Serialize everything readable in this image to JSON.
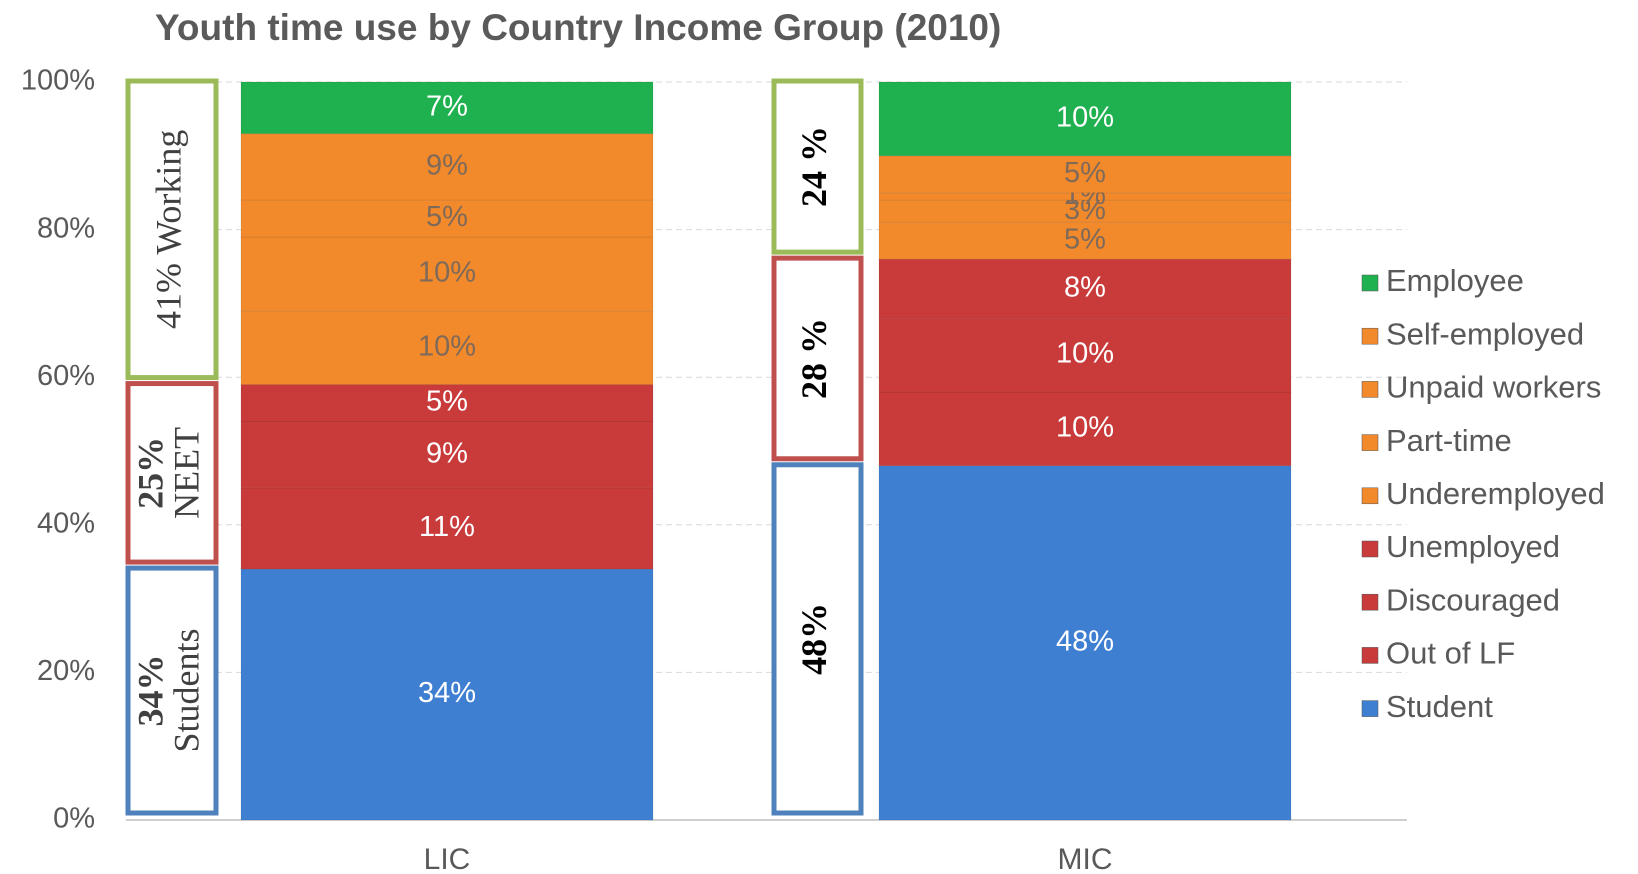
{
  "chart_data": {
    "type": "stacked_bar",
    "title": "Youth time use by Country Income Group (2010)",
    "categories": [
      "LIC",
      "MIC"
    ],
    "series": [
      {
        "name": "Student",
        "color": "#3f7fd2",
        "values": [
          34,
          48
        ],
        "value_labels": [
          "34%",
          "48%"
        ]
      },
      {
        "name": "Out of LF",
        "color": "#c93b3b",
        "values": [
          11,
          10
        ],
        "value_labels": [
          "11%",
          "10%"
        ]
      },
      {
        "name": "Discouraged",
        "color": "#c93b3b",
        "values": [
          9,
          10
        ],
        "value_labels": [
          "9%",
          "10%"
        ]
      },
      {
        "name": "Unemployed",
        "color": "#c93b3b",
        "values": [
          5,
          8
        ],
        "value_labels": [
          "5%",
          "8%"
        ]
      },
      {
        "name": "Underemployed",
        "color": "#f28a2c",
        "values": [
          10,
          5
        ],
        "value_labels": [
          "10%",
          "5%"
        ]
      },
      {
        "name": "Part-time",
        "color": "#f28a2c",
        "values": [
          10,
          3
        ],
        "value_labels": [
          "10%",
          "3%"
        ]
      },
      {
        "name": "Unpaid workers",
        "color": "#f28a2c",
        "values": [
          5,
          1
        ],
        "value_labels": [
          "5%",
          "1%"
        ]
      },
      {
        "name": "Self-employed",
        "color": "#f28a2c",
        "values": [
          9,
          5
        ],
        "value_labels": [
          "9%",
          "5%"
        ]
      },
      {
        "name": "Employee",
        "color": "#1fb14f",
        "values": [
          7,
          10
        ],
        "value_labels": [
          "7%",
          "10%"
        ]
      }
    ],
    "ylim": [
      0,
      100
    ],
    "yticks": [
      {
        "value": 0,
        "label": "0%"
      },
      {
        "value": 20,
        "label": "20%"
      },
      {
        "value": 40,
        "label": "40%"
      },
      {
        "value": 60,
        "label": "60%"
      },
      {
        "value": 80,
        "label": "80%"
      },
      {
        "value": 100,
        "label": "100%"
      }
    ],
    "grid": true,
    "legend": "right",
    "annotations": [
      {
        "lines": [
          "34%",
          "Students"
        ],
        "color": "#4f81bd"
      },
      {
        "lines": [
          "25%",
          "NEET"
        ],
        "color": "#c0504d"
      },
      {
        "lines": [
          "41% Working"
        ],
        "color": "#9bbb59"
      },
      {
        "lines": [
          "48%"
        ],
        "color": "#4f81bd"
      },
      {
        "lines": [
          "28 %"
        ],
        "color": "#c0504d"
      },
      {
        "lines": [
          "24 %"
        ],
        "color": "#9bbb59"
      }
    ]
  }
}
